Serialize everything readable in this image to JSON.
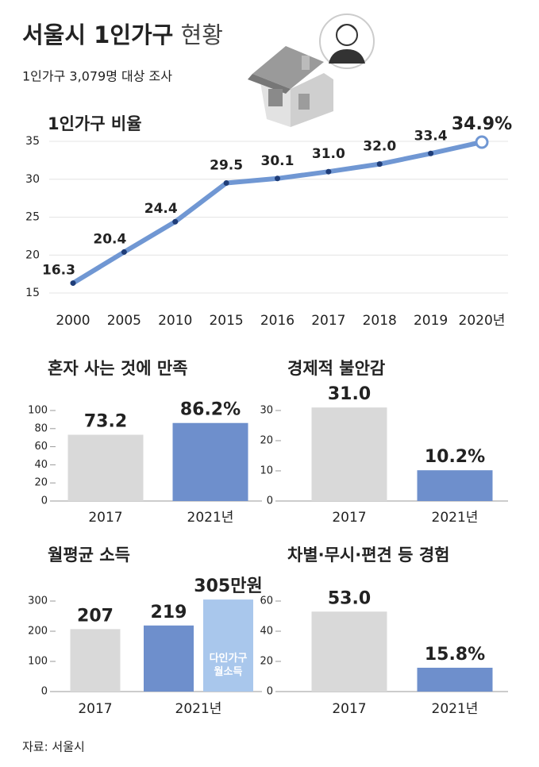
{
  "header": {
    "title": "서울시 1인가구",
    "title_suffix": "현황",
    "subtitle": "1인가구 3,079명 대상 조사"
  },
  "chart_data": [
    {
      "type": "line",
      "title": "1인가구 비율",
      "categories": [
        "2000",
        "2005",
        "2010",
        "2015",
        "2016",
        "2017",
        "2018",
        "2019",
        "2020년"
      ],
      "values": [
        16.3,
        20.4,
        24.4,
        29.5,
        30.1,
        31.0,
        32.0,
        33.4,
        34.9
      ],
      "value_labels": [
        "16.3",
        "20.4",
        "24.4",
        "29.5",
        "30.1",
        "31.0",
        "32.0",
        "33.4",
        "34.9%"
      ],
      "color": "#7097d3",
      "marker_color": "#1f3d78",
      "ylim": [
        15,
        35
      ],
      "yticks": [
        15,
        20,
        25,
        30,
        35
      ],
      "grid": true
    },
    {
      "type": "bar",
      "title": "혼자 사는 것에 만족",
      "categories": [
        "2017",
        "2021년"
      ],
      "values": [
        73.2,
        86.2
      ],
      "value_labels": [
        "73.2",
        "86.2%"
      ],
      "colors": [
        "#d9d9d9",
        "#6e8fcc"
      ],
      "ylim": [
        0,
        100
      ],
      "yticks": [
        0,
        20,
        40,
        60,
        80,
        100
      ]
    },
    {
      "type": "bar",
      "title": "경제적 불안감",
      "categories": [
        "2017",
        "2021년"
      ],
      "values": [
        31.0,
        10.2
      ],
      "value_labels": [
        "31.0",
        "10.2%"
      ],
      "colors": [
        "#d9d9d9",
        "#6e8fcc"
      ],
      "ylim": [
        0,
        30
      ],
      "yticks": [
        0,
        10,
        20,
        30
      ]
    },
    {
      "type": "bar",
      "title": "월평균 소득",
      "categories": [
        "2017",
        "2021년"
      ],
      "series": [
        {
          "values": [
            207,
            219
          ],
          "colors": [
            "#d9d9d9",
            "#6e8fcc"
          ]
        },
        {
          "name": "다인가구 월소득",
          "values": [
            null,
            305
          ],
          "value_labels": [
            null,
            "305만원"
          ],
          "color": "#a9c7ec"
        }
      ],
      "ylim": [
        0,
        300
      ],
      "yticks": [
        0,
        100,
        200,
        300
      ]
    },
    {
      "type": "bar",
      "title": "차별·무시·편견 등 경험",
      "categories": [
        "2017",
        "2021년"
      ],
      "values": [
        53.0,
        15.8
      ],
      "value_labels": [
        "53.0",
        "15.8%"
      ],
      "colors": [
        "#d9d9d9",
        "#6e8fcc"
      ],
      "ylim": [
        0,
        60
      ],
      "yticks": [
        0,
        20,
        40,
        60
      ]
    }
  ],
  "source": "자료: 서울시"
}
